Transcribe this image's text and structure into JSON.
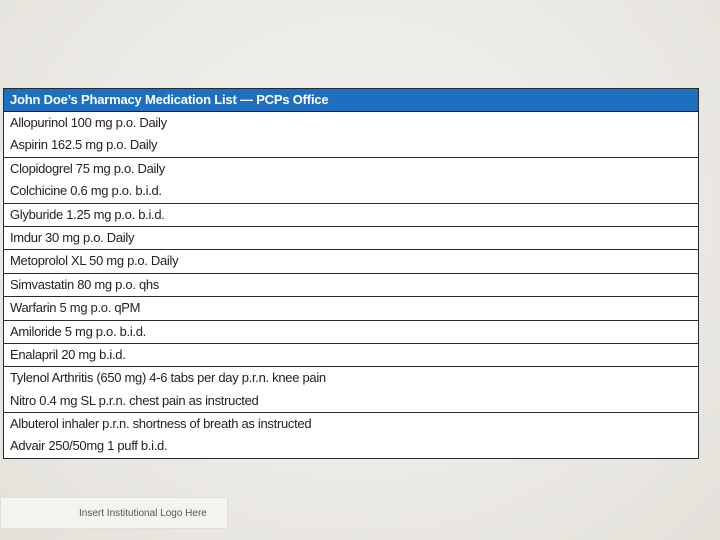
{
  "table": {
    "title": "John Doe’s Pharmacy Medication List — PCPs Office",
    "groups": [
      [
        "Allopurinol 100 mg p.o. Daily",
        "Aspirin 162.5 mg p.o. Daily"
      ],
      [
        "Clopidogrel 75 mg p.o. Daily",
        "Colchicine 0.6 mg p.o. b.i.d."
      ],
      [
        "Glyburide 1.25 mg p.o. b.i.d."
      ],
      [
        "Imdur 30 mg p.o. Daily"
      ],
      [
        "Metoprolol XL 50 mg p.o. Daily"
      ],
      [
        "Simvastatin 80 mg p.o. qhs"
      ],
      [
        "Warfarin 5 mg p.o. qPM"
      ],
      [
        "Amiloride 5 mg p.o. b.i.d."
      ],
      [
        "Enalapril 20 mg b.i.d."
      ],
      [
        "Tylenol Arthritis (650 mg) 4-6 tabs per day p.r.n. knee pain",
        "Nitro 0.4 mg SL p.r.n. chest pain as instructed"
      ],
      [
        "Albuterol inhaler p.r.n. shortness of breath as instructed",
        "Advair 250/50mg 1 puff b.i.d."
      ]
    ]
  },
  "logo_placeholder": "Insert Institutional Logo Here",
  "colors": {
    "header_bg": "#1f6fc1",
    "background": "#ebe9e3"
  }
}
